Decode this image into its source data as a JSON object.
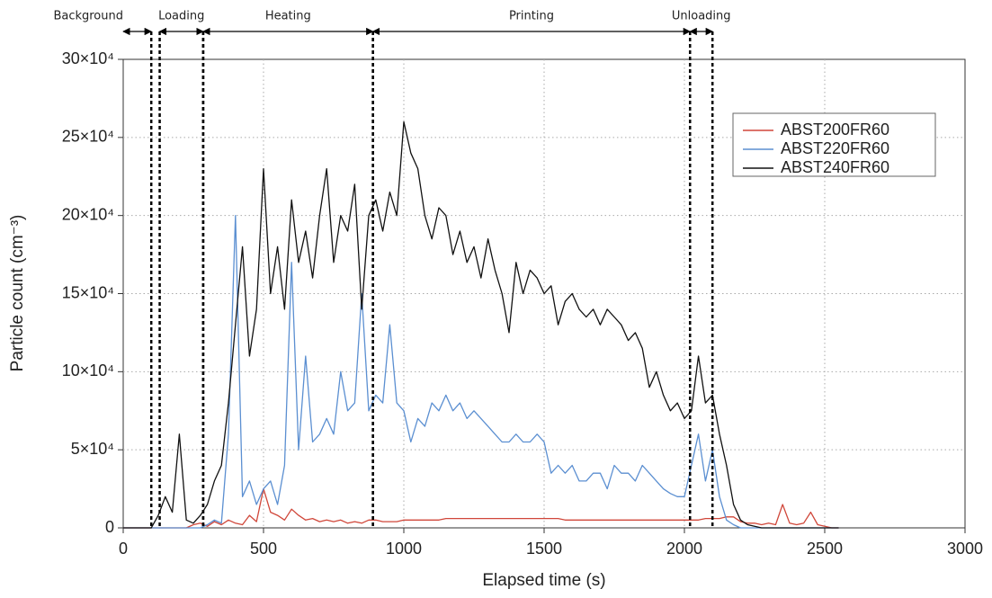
{
  "chart_data": {
    "type": "line",
    "xlabel": "Elapsed time (s)",
    "ylabel": "Particle count (cm⁻³)",
    "xlim": [
      0,
      3000
    ],
    "xticks": [
      0,
      500,
      1000,
      1500,
      2000,
      2500,
      3000
    ],
    "ylim": [
      0,
      300000
    ],
    "yticks": [
      0,
      {
        "value": 50000,
        "label": "5×10⁴"
      },
      {
        "value": 100000,
        "label": "10×10⁴"
      },
      {
        "value": 150000,
        "label": "15×10⁴"
      },
      {
        "value": 200000,
        "label": "20×10⁴"
      },
      {
        "value": 250000,
        "label": "25×10⁴"
      },
      {
        "value": 300000,
        "label": "30×10⁴"
      }
    ],
    "grid": true,
    "legend": "upper right",
    "phases": [
      {
        "label": "Background",
        "start": 0,
        "end": 100
      },
      {
        "label": "Loading",
        "start": 130,
        "end": 285
      },
      {
        "label": "Heating",
        "start": 285,
        "end": 890
      },
      {
        "label": "Printing",
        "start": 890,
        "end": 2020
      },
      {
        "label": "Unloading",
        "start": 2020,
        "end": 2100
      }
    ],
    "x": [
      0,
      25,
      50,
      75,
      100,
      125,
      150,
      175,
      200,
      225,
      250,
      275,
      300,
      325,
      350,
      375,
      400,
      425,
      450,
      475,
      500,
      525,
      550,
      575,
      600,
      625,
      650,
      675,
      700,
      725,
      750,
      775,
      800,
      825,
      850,
      875,
      900,
      925,
      950,
      975,
      1000,
      1025,
      1050,
      1075,
      1100,
      1125,
      1150,
      1175,
      1200,
      1225,
      1250,
      1275,
      1300,
      1325,
      1350,
      1375,
      1400,
      1425,
      1450,
      1475,
      1500,
      1525,
      1550,
      1575,
      1600,
      1625,
      1650,
      1675,
      1700,
      1725,
      1750,
      1775,
      1800,
      1825,
      1850,
      1875,
      1900,
      1925,
      1950,
      1975,
      2000,
      2025,
      2050,
      2075,
      2100,
      2125,
      2150,
      2175,
      2200,
      2225,
      2250,
      2275,
      2300,
      2325,
      2350,
      2375,
      2400,
      2425,
      2450,
      2475,
      2500,
      2525,
      2550
    ],
    "series": [
      {
        "name": "ABST200FR60",
        "color": "#d0473a",
        "values": [
          0,
          0,
          0,
          0,
          0,
          0,
          0,
          0,
          0,
          0,
          2000,
          3000,
          1000,
          4000,
          2000,
          5000,
          3000,
          2000,
          8000,
          4000,
          25000,
          10000,
          8000,
          5000,
          12000,
          8000,
          5000,
          6000,
          4000,
          5000,
          4000,
          5000,
          3000,
          4000,
          3000,
          5000,
          5000,
          4000,
          4000,
          4000,
          5000,
          5000,
          5000,
          5000,
          5000,
          5000,
          6000,
          6000,
          6000,
          6000,
          6000,
          6000,
          6000,
          6000,
          6000,
          6000,
          6000,
          6000,
          6000,
          6000,
          6000,
          6000,
          6000,
          5000,
          5000,
          5000,
          5000,
          5000,
          5000,
          5000,
          5000,
          5000,
          5000,
          5000,
          5000,
          5000,
          5000,
          5000,
          5000,
          5000,
          5000,
          5000,
          5000,
          6000,
          6000,
          6000,
          7000,
          7000,
          4000,
          3000,
          3000,
          2000,
          3000,
          2000,
          15000,
          3000,
          2000,
          3000,
          10000,
          2000,
          1000,
          0,
          0
        ]
      },
      {
        "name": "ABST220FR60",
        "color": "#5b8fd1",
        "values": [
          0,
          0,
          0,
          0,
          0,
          0,
          0,
          0,
          0,
          0,
          0,
          0,
          2000,
          5000,
          3000,
          60000,
          200000,
          20000,
          30000,
          15000,
          25000,
          30000,
          15000,
          40000,
          170000,
          50000,
          110000,
          55000,
          60000,
          70000,
          60000,
          100000,
          75000,
          80000,
          150000,
          75000,
          85000,
          80000,
          130000,
          80000,
          75000,
          55000,
          70000,
          65000,
          80000,
          75000,
          85000,
          75000,
          80000,
          70000,
          75000,
          70000,
          65000,
          60000,
          55000,
          55000,
          60000,
          55000,
          55000,
          60000,
          55000,
          35000,
          40000,
          35000,
          40000,
          30000,
          30000,
          35000,
          35000,
          25000,
          40000,
          35000,
          35000,
          30000,
          40000,
          35000,
          30000,
          25000,
          22000,
          20000,
          20000,
          40000,
          60000,
          30000,
          50000,
          20000,
          5000,
          2000,
          0,
          0,
          0,
          0,
          0,
          0,
          0,
          0,
          0,
          0,
          0,
          0,
          0,
          0,
          0
        ]
      },
      {
        "name": "ABST240FR60",
        "color": "#111111",
        "values": [
          0,
          0,
          0,
          0,
          0,
          8000,
          20000,
          10000,
          60000,
          5000,
          3000,
          8000,
          15000,
          30000,
          40000,
          80000,
          130000,
          180000,
          110000,
          140000,
          230000,
          150000,
          180000,
          140000,
          210000,
          170000,
          190000,
          160000,
          200000,
          230000,
          170000,
          200000,
          190000,
          220000,
          140000,
          200000,
          210000,
          190000,
          215000,
          200000,
          260000,
          240000,
          230000,
          200000,
          185000,
          205000,
          200000,
          175000,
          190000,
          170000,
          180000,
          160000,
          185000,
          165000,
          150000,
          125000,
          170000,
          150000,
          165000,
          160000,
          150000,
          155000,
          130000,
          145000,
          150000,
          140000,
          135000,
          140000,
          130000,
          140000,
          135000,
          130000,
          120000,
          125000,
          115000,
          90000,
          100000,
          85000,
          75000,
          80000,
          70000,
          75000,
          110000,
          80000,
          85000,
          60000,
          40000,
          15000,
          5000,
          2000,
          1000,
          0,
          0,
          0,
          0,
          0,
          0,
          0,
          0,
          0,
          0,
          0,
          0
        ]
      }
    ]
  }
}
